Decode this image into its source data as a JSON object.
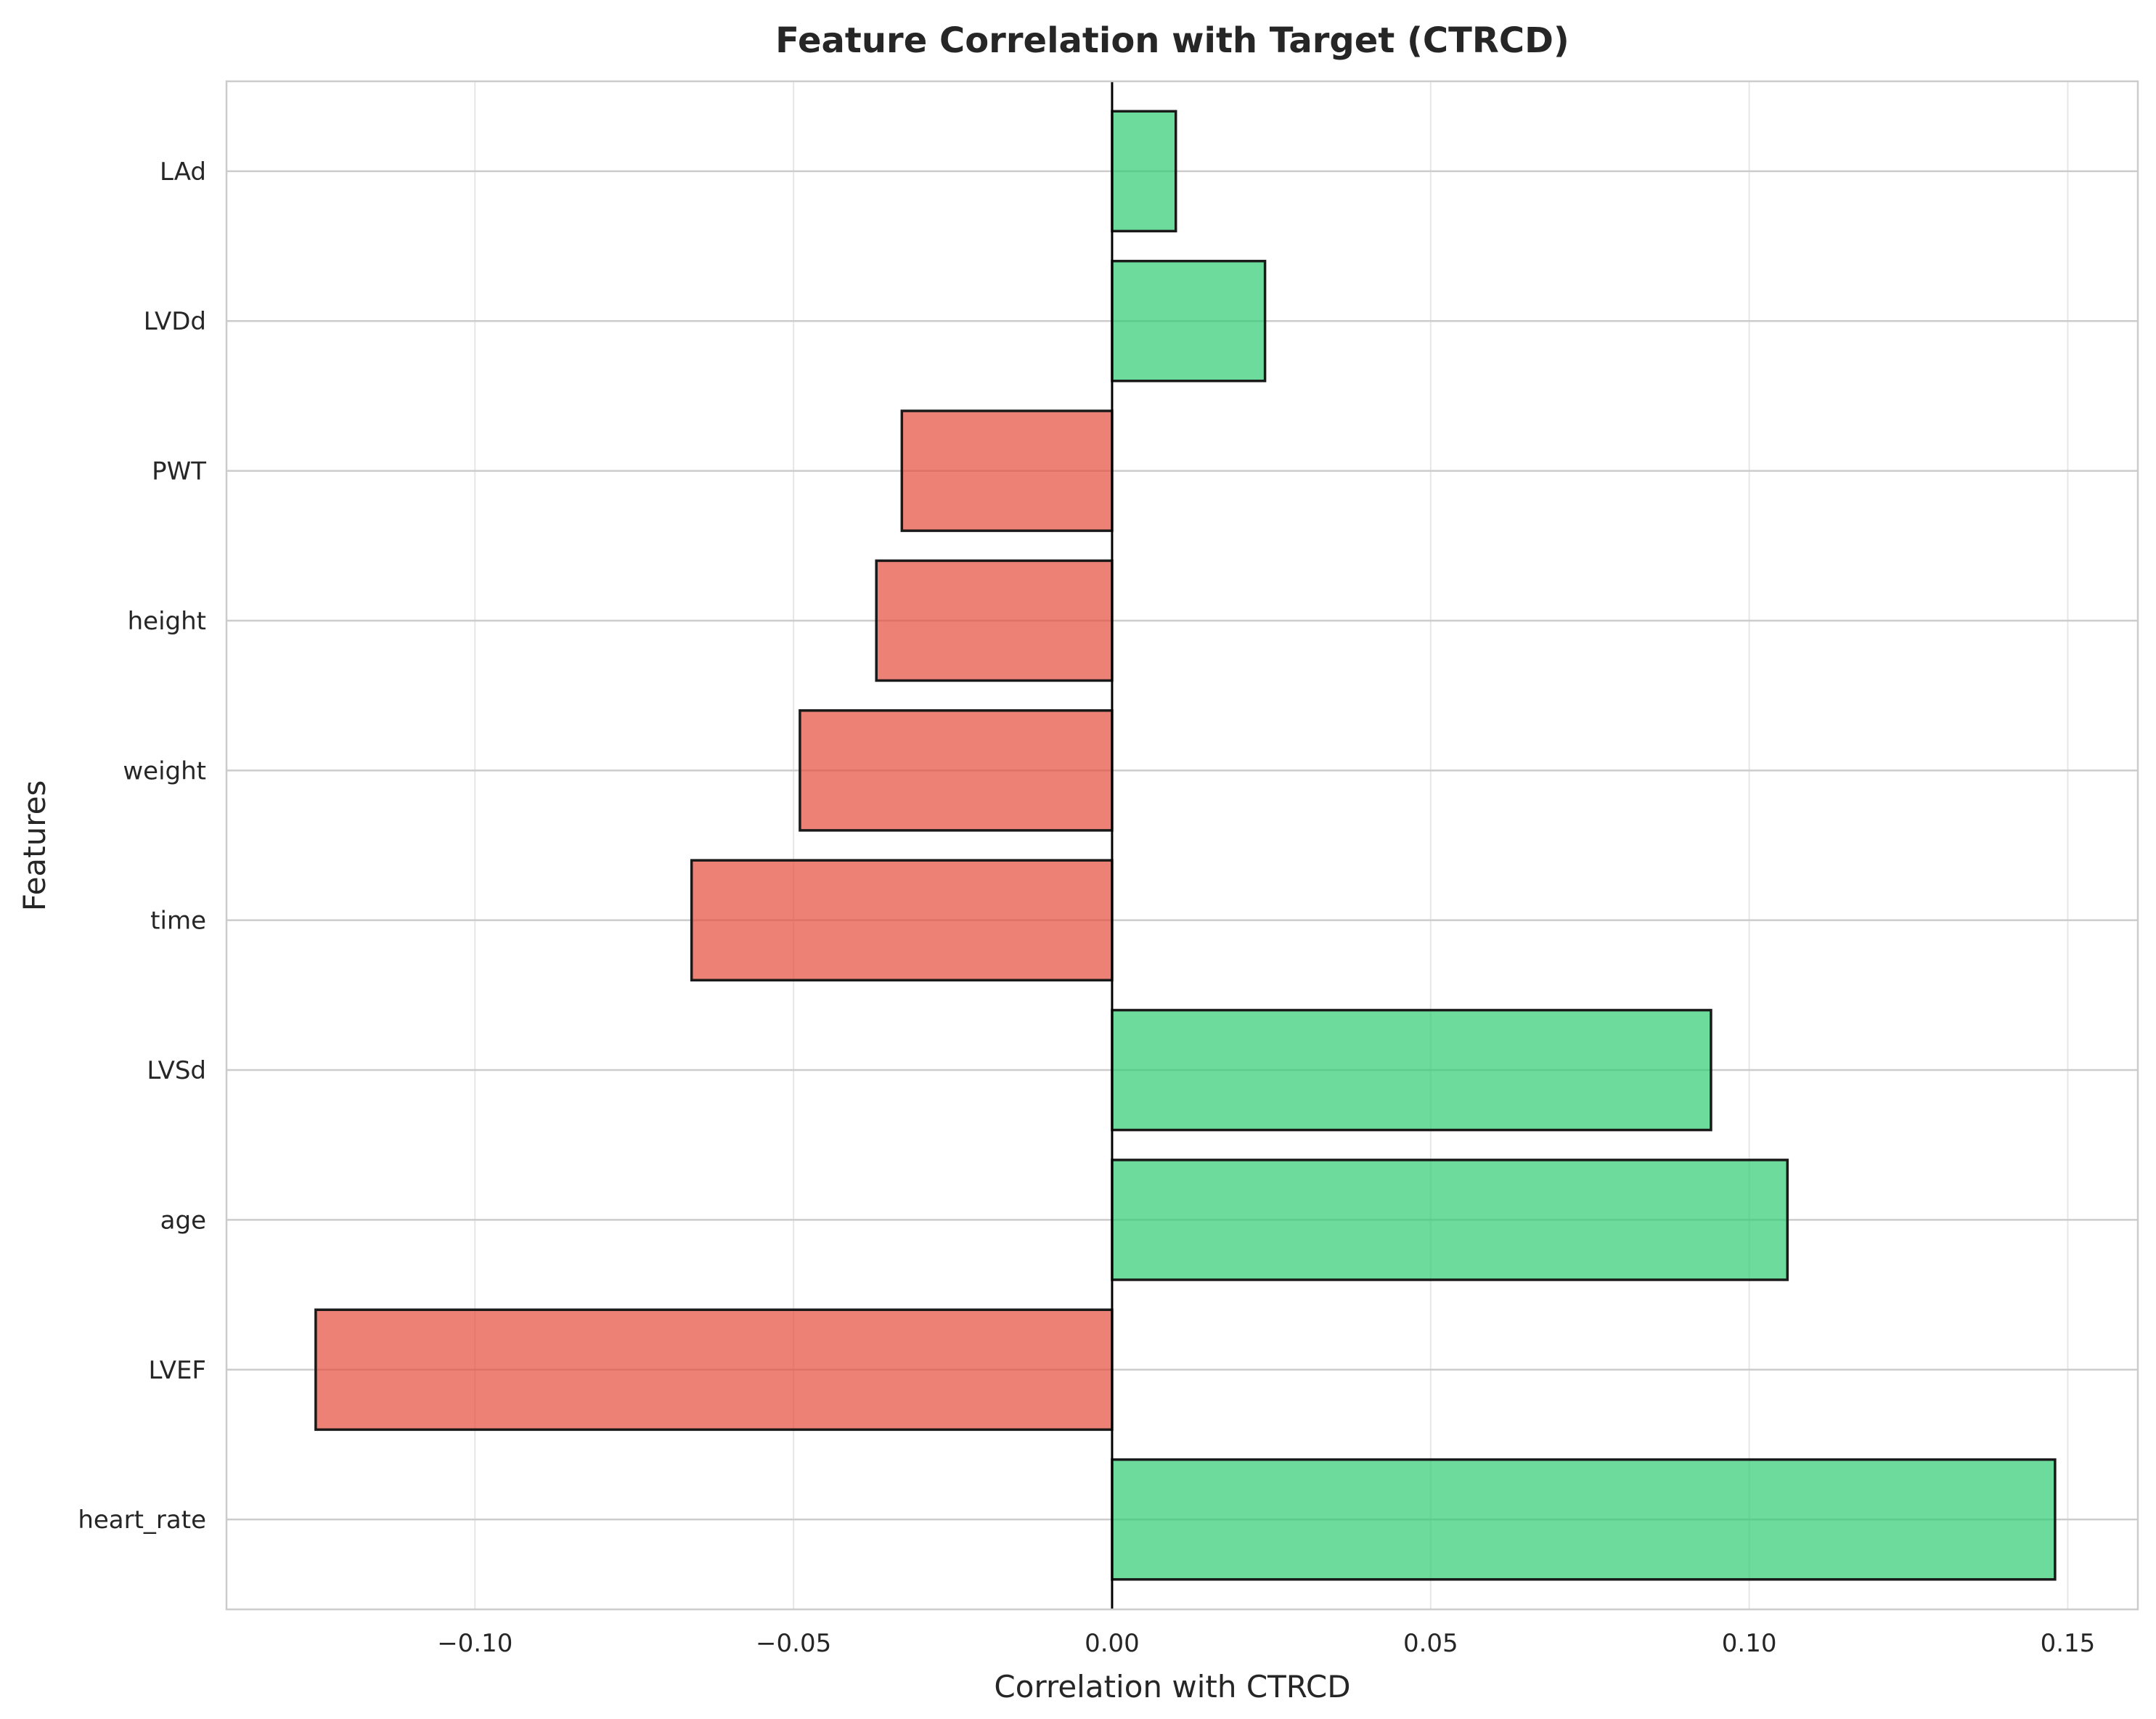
{
  "chart_data": {
    "type": "bar",
    "orientation": "horizontal",
    "title": "Feature Correlation with Target (CTRCD)",
    "xlabel": "Correlation with CTRCD",
    "ylabel": "Features",
    "categories": [
      "heart_rate",
      "LVEF",
      "age",
      "LVSd",
      "time",
      "weight",
      "height",
      "PWT",
      "LVDd",
      "LAd"
    ],
    "values": [
      0.148,
      -0.125,
      0.106,
      0.094,
      -0.066,
      -0.049,
      -0.037,
      -0.033,
      0.024,
      0.01
    ],
    "xlim": [
      -0.139,
      0.161
    ],
    "xticks": [
      -0.1,
      -0.05,
      0.0,
      0.05,
      0.1,
      0.15
    ],
    "xtick_labels": [
      "−0.10",
      "−0.05",
      "0.00",
      "0.05",
      "0.10",
      "0.15"
    ],
    "grid": true,
    "colors": {
      "positive": "#2ecc71",
      "negative": "#e74c3c",
      "edge": "#1a1a1a",
      "grid": "#e6e6e6",
      "axes_edge": "#cccccc",
      "zero_line": "#000000"
    }
  }
}
